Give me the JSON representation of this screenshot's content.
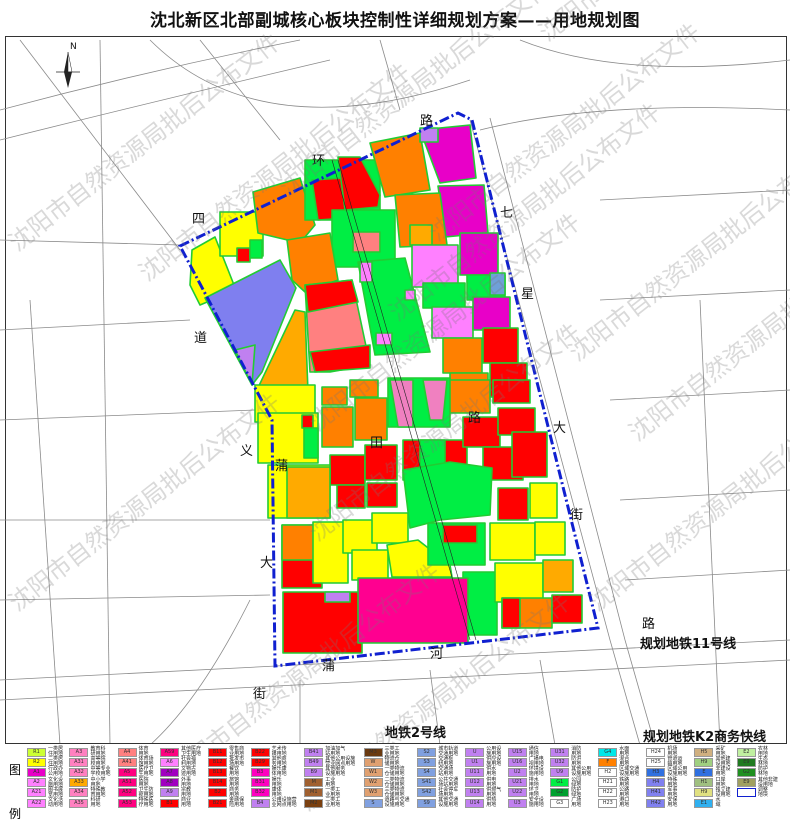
{
  "title": "沈北新区北部副城核心板块控制性详细规划方案——用地规划图",
  "north_label": "N",
  "road_labels": [
    "环",
    "路",
    "四",
    "道",
    "义",
    "蒲",
    "田",
    "路",
    "七",
    "星",
    "大",
    "街",
    "大",
    "蒲",
    "河",
    "路",
    "街"
  ],
  "metro_labels": {
    "line11": "规划地铁11号线",
    "line2": "地铁2号线",
    "k2": "规划地铁K2商务快线"
  },
  "watermark": "沈阳市自然资源局批后公布文件",
  "colors": {
    "boundary": "#1020d0",
    "residential": "#ffff00",
    "commercial": "#ff0000",
    "education": "#ff8000",
    "green": "#00ee44",
    "administration": "#e800c8"
  },
  "legend": {
    "title": "图例",
    "items": [
      {
        "code": "R1",
        "name": "一类居住用地",
        "color": "#ccff33"
      },
      {
        "code": "R2",
        "name": "二类居住用地",
        "color": "#ffff00"
      },
      {
        "code": "A1",
        "name": "行政办公用地",
        "color": "#e800c8"
      },
      {
        "code": "A2",
        "name": "文化设施用地",
        "color": "#ff80ff"
      },
      {
        "code": "A21",
        "name": "图书展览用地",
        "color": "#ff80ff"
      },
      {
        "code": "A22",
        "name": "文化活动用地",
        "color": "#ff80ff"
      },
      {
        "code": "A3",
        "name": "教育科研用地",
        "color": "#ff80c0"
      },
      {
        "code": "A31",
        "name": "高等院校用地",
        "color": "#ff80c0"
      },
      {
        "code": "A32",
        "name": "中等专业学校用地",
        "color": "#ff80c0"
      },
      {
        "code": "A33",
        "name": "中小学用地",
        "color": "#ffaa00"
      },
      {
        "code": "A34",
        "name": "特殊教育用地",
        "color": "#ff80c0"
      },
      {
        "code": "A35",
        "name": "科研用地",
        "color": "#ff80c0"
      },
      {
        "code": "A4",
        "name": "体育用地",
        "color": "#ff8080"
      },
      {
        "code": "A41",
        "name": "体育场馆用地",
        "color": "#ff8080"
      },
      {
        "code": "A5",
        "name": "医疗卫生用地",
        "color": "#ff0080"
      },
      {
        "code": "A51",
        "name": "医院用地",
        "color": "#ff0080"
      },
      {
        "code": "A52",
        "name": "卫生防疫用地",
        "color": "#ff0080"
      },
      {
        "code": "A53",
        "name": "特殊医疗用地",
        "color": "#ff0080"
      },
      {
        "code": "A59",
        "name": "其他医疗卫生用地",
        "color": "#ff0080"
      },
      {
        "code": "A6",
        "name": "社会福利用地",
        "color": "#ff80ff"
      },
      {
        "code": "A7",
        "name": "文物古迹用地",
        "color": "#a000c0"
      },
      {
        "code": "A8",
        "name": "外事用地",
        "color": "#a000c0"
      },
      {
        "code": "A9",
        "name": "宗教用地",
        "color": "#c080f0"
      },
      {
        "code": "B1",
        "name": "商业用地",
        "color": "#ff0000"
      },
      {
        "code": "B11",
        "name": "零售商业用地",
        "color": "#ff0000"
      },
      {
        "code": "B12",
        "name": "批发市场用地",
        "color": "#ff0000"
      },
      {
        "code": "B13",
        "name": "餐饮用地",
        "color": "#ff0000"
      },
      {
        "code": "B14",
        "name": "旅馆用地",
        "color": "#ff0000"
      },
      {
        "code": "B2",
        "name": "商务用地",
        "color": "#ff0000"
      },
      {
        "code": "B21",
        "name": "金融保险用地",
        "color": "#ff0000"
      },
      {
        "code": "B22",
        "name": "艺术传媒用地",
        "color": "#ff0000"
      },
      {
        "code": "B29",
        "name": "其他商务用地",
        "color": "#ff0000"
      },
      {
        "code": "B3",
        "name": "娱乐康体用地",
        "color": "#ff00c0"
      },
      {
        "code": "B31",
        "name": "娱乐用地",
        "color": "#ff00c0"
      },
      {
        "code": "B32",
        "name": "康体用地",
        "color": "#ff00c0"
      },
      {
        "code": "B4",
        "name": "公用设施营业网点用地",
        "color": "#c080f0"
      },
      {
        "code": "B41",
        "name": "加油加气站用地",
        "color": "#c080f0"
      },
      {
        "code": "B49",
        "name": "其他公用设施营业网点用地",
        "color": "#c080f0"
      },
      {
        "code": "B9",
        "name": "其他服务设施用地",
        "color": "#c080f0"
      },
      {
        "code": "M",
        "name": "工业用地",
        "color": "#a06030"
      },
      {
        "code": "M1",
        "name": "一类工业用地",
        "color": "#a06030"
      },
      {
        "code": "M2",
        "name": "二类工业用地",
        "color": "#7a4010"
      },
      {
        "code": "M3",
        "name": "三类工业用地",
        "color": "#6a3a10"
      },
      {
        "code": "W",
        "name": "物流仓储用地",
        "color": "#e0a070"
      },
      {
        "code": "W1",
        "name": "一类物流仓储用地",
        "color": "#e0a070"
      },
      {
        "code": "W2",
        "name": "二类物流仓储用地",
        "color": "#e0a070"
      },
      {
        "code": "W3",
        "name": "三类物流仓储用地",
        "color": "#e0a070"
      },
      {
        "code": "S",
        "name": "道路与交通设施用地",
        "color": "#80a0e0"
      },
      {
        "code": "S2",
        "name": "城市轨道交通用地",
        "color": "#80a0e0"
      },
      {
        "code": "S3",
        "name": "交通枢纽用地",
        "color": "#80a0e0"
      },
      {
        "code": "S4",
        "name": "交通场站用地",
        "color": "#80a0e0"
      },
      {
        "code": "S41",
        "name": "公共交通场站用地",
        "color": "#80a0e0"
      },
      {
        "code": "S42",
        "name": "社会停车场用地",
        "color": "#80a0e0"
      },
      {
        "code": "S9",
        "name": "其他交通设施用地",
        "color": "#80a0e0"
      },
      {
        "code": "U",
        "name": "公用设施用地",
        "color": "#c080f0"
      },
      {
        "code": "U1",
        "name": "供应设施用地",
        "color": "#c080f0"
      },
      {
        "code": "U11",
        "name": "供水用地",
        "color": "#c080f0"
      },
      {
        "code": "U12",
        "name": "供电用地",
        "color": "#c080f0"
      },
      {
        "code": "U13",
        "name": "供燃气用地",
        "color": "#c080f0"
      },
      {
        "code": "U14",
        "name": "供热用地",
        "color": "#c080f0"
      },
      {
        "code": "U15",
        "name": "通信用地",
        "color": "#c080f0"
      },
      {
        "code": "U16",
        "name": "广播电视用地",
        "color": "#c080f0"
      },
      {
        "code": "U2",
        "name": "环境设施用地",
        "color": "#c080f0"
      },
      {
        "code": "U21",
        "name": "排水用地",
        "color": "#c080f0"
      },
      {
        "code": "U22",
        "name": "环卫用地",
        "color": "#c080f0"
      },
      {
        "code": "U3",
        "name": "安全设施用地",
        "color": "#c080f0"
      },
      {
        "code": "U31",
        "name": "消防用地",
        "color": "#c080f0"
      },
      {
        "code": "U32",
        "name": "防洪用地",
        "color": "#c080f0"
      },
      {
        "code": "U9",
        "name": "其他公用设施用地",
        "color": "#c080f0"
      },
      {
        "code": "G1",
        "name": "公园绿地",
        "color": "#00ee44"
      },
      {
        "code": "G2",
        "name": "防护绿地",
        "color": "#00a030"
      },
      {
        "code": "G3",
        "name": "广场用地",
        "color": "#ffffff"
      },
      {
        "code": "G4",
        "name": "水面用地",
        "color": "#00e8e8"
      },
      {
        "code": "F",
        "name": "混合用地",
        "color": "#ff8000"
      },
      {
        "code": "H2",
        "name": "区域交通设施用地",
        "color": "#ffffff"
      },
      {
        "code": "H21",
        "name": "铁路用地",
        "color": "#ffffff"
      },
      {
        "code": "H22",
        "name": "公路用地",
        "color": "#ffffff"
      },
      {
        "code": "H23",
        "name": "港口用地",
        "color": "#ffffff"
      },
      {
        "code": "H24",
        "name": "机场用地",
        "color": "#ffffff"
      },
      {
        "code": "H25",
        "name": "管道运输用地",
        "color": "#ffffff"
      },
      {
        "code": "H3",
        "name": "区域公用设施用地",
        "color": "#3070e0"
      },
      {
        "code": "H4",
        "name": "特殊用地",
        "color": "#8080f0"
      },
      {
        "code": "H41",
        "name": "军事用地",
        "color": "#8080f0"
      },
      {
        "code": "H42",
        "name": "安保用地",
        "color": "#8080f0"
      },
      {
        "code": "H5",
        "name": "采矿用地",
        "color": "#d0b080"
      },
      {
        "code": "H9",
        "name": "其他建设用地",
        "color": "#a0d080"
      },
      {
        "code": "E",
        "name": "非建设用地",
        "color": "#3070e0"
      },
      {
        "code": "H1",
        "name": "口岸用地",
        "color": "#a0c080"
      },
      {
        "code": "H9",
        "name": "独立建设用地",
        "color": "#e0e080"
      },
      {
        "code": "E1",
        "name": "水域",
        "color": "#30b0f0"
      },
      {
        "code": "E2",
        "name": "农林用地",
        "color": "#c0f0a0"
      },
      {
        "code": "E9",
        "name": "生态林地",
        "color": "#207a20"
      },
      {
        "code": "G2",
        "name": "防护林地",
        "color": "#209020"
      },
      {
        "code": "E9",
        "name": "其他非建设用地",
        "color": "#a0a060"
      },
      {
        "code": "",
        "name": "调整地块",
        "color": "#ffffff"
      }
    ]
  }
}
